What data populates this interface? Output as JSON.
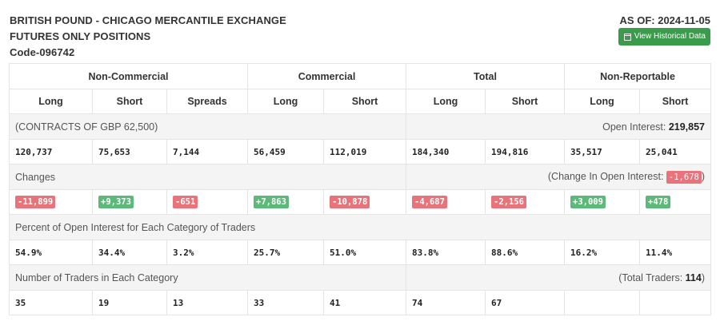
{
  "header": {
    "title_line1": "BRITISH POUND - CHICAGO MERCANTILE EXCHANGE",
    "title_line2": "FUTURES ONLY POSITIONS",
    "code": "Code-096742",
    "as_of": "AS OF: 2024-11-05",
    "history_button": "View Historical Data"
  },
  "columns": {
    "groups": [
      "Non-Commercial",
      "Commercial",
      "Total",
      "Non-Reportable"
    ],
    "subs": [
      "Long",
      "Short",
      "Spreads",
      "Long",
      "Short",
      "Long",
      "Short",
      "Long",
      "Short"
    ]
  },
  "contracts": {
    "label": "(CONTRACTS OF GBP 62,500)",
    "open_interest_label": "Open Interest:",
    "open_interest_value": "219,857",
    "values": [
      "120,737",
      "75,653",
      "7,144",
      "56,459",
      "112,019",
      "184,340",
      "194,816",
      "35,517",
      "25,041"
    ]
  },
  "changes": {
    "label": "Changes",
    "change_oi_prefix": "(Change In Open Interest:",
    "change_oi_value": "-1,678",
    "change_oi_suffix": ")",
    "values": [
      "-11,899",
      "+9,373",
      "-651",
      "+7,863",
      "-10,878",
      "-4,687",
      "-2,156",
      "+3,009",
      "+478"
    ],
    "colors": {
      "negative": "#e9737a",
      "positive": "#5cb97a"
    }
  },
  "percent": {
    "label": "Percent of Open Interest for Each Category of Traders",
    "values": [
      "54.9%",
      "34.4%",
      "3.2%",
      "25.7%",
      "51.0%",
      "83.8%",
      "88.6%",
      "16.2%",
      "11.4%"
    ]
  },
  "traders": {
    "label": "Number of Traders in Each Category",
    "total_prefix": "(Total Traders:",
    "total_value": "114",
    "total_suffix": ")",
    "values": [
      "35",
      "19",
      "13",
      "33",
      "41",
      "74",
      "67",
      "",
      ""
    ]
  },
  "colors": {
    "accent_button": "#3a9b4a"
  }
}
